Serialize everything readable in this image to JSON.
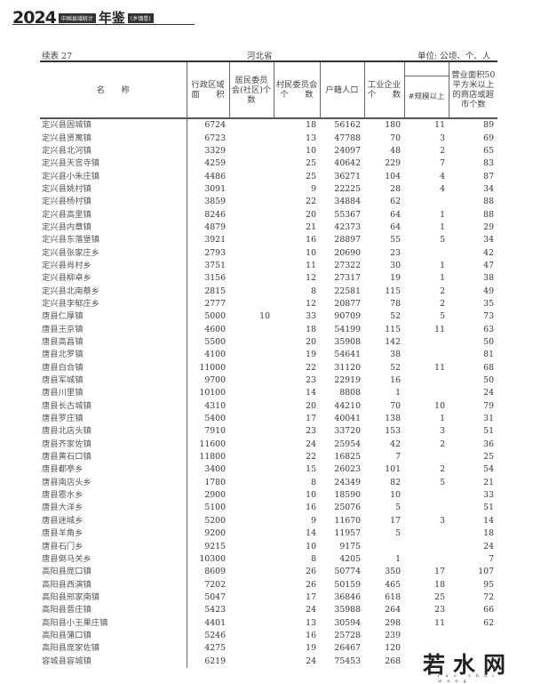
{
  "header": {
    "year": "2024",
    "series": "中国县域统计",
    "yearbook": "年鉴",
    "volume": "(乡镇卷)"
  },
  "caption": {
    "table_no": "续表 27",
    "province": "河北省",
    "unit": "单位: 公顷、个、人"
  },
  "columns": {
    "name": "名　　称",
    "area": "行政区域面　　积",
    "residents": "居民委员会(社区)个数",
    "villages": "村民委员会个　　数",
    "population": "户籍人口",
    "industry": "工业企业个　　数",
    "above_scale": "#规模以上",
    "shops": "营业面积50平方米以上的商店或超市个数"
  },
  "rows": [
    [
      "定兴县固城镇",
      "6724",
      "",
      "18",
      "56162",
      "180",
      "11",
      "89"
    ],
    [
      "定兴县贤寓镇",
      "6723",
      "",
      "13",
      "47788",
      "70",
      "3",
      "69"
    ],
    [
      "定兴县北河镇",
      "3329",
      "",
      "10",
      "24097",
      "48",
      "2",
      "65"
    ],
    [
      "定兴县天宫寺镇",
      "4259",
      "",
      "25",
      "40642",
      "229",
      "7",
      "83"
    ],
    [
      "定兴县小朱庄镇",
      "4486",
      "",
      "25",
      "36271",
      "104",
      "4",
      "87"
    ],
    [
      "定兴县姚村镇",
      "3091",
      "",
      "9",
      "22225",
      "28",
      "4",
      "34"
    ],
    [
      "定兴县杨村镇",
      "3859",
      "",
      "22",
      "34884",
      "62",
      "",
      "88"
    ],
    [
      "定兴县高里镇",
      "8246",
      "",
      "20",
      "55367",
      "64",
      "1",
      "88"
    ],
    [
      "定兴县内章镇",
      "4879",
      "",
      "21",
      "42373",
      "64",
      "1",
      "29"
    ],
    [
      "定兴县东落堡镇",
      "3921",
      "",
      "16",
      "28897",
      "55",
      "5",
      "34"
    ],
    [
      "定兴县张家庄乡",
      "2793",
      "",
      "10",
      "20690",
      "23",
      "",
      "42"
    ],
    [
      "定兴县肖村乡",
      "3751",
      "",
      "11",
      "27322",
      "30",
      "1",
      "47"
    ],
    [
      "定兴县柳卓乡",
      "3156",
      "",
      "12",
      "27317",
      "19",
      "1",
      "38"
    ],
    [
      "定兴县北南蔡乡",
      "2815",
      "",
      "8",
      "22581",
      "115",
      "2",
      "49"
    ],
    [
      "定兴县李郁庄乡",
      "2777",
      "",
      "12",
      "20877",
      "78",
      "2",
      "35"
    ],
    [
      "唐县仁厚镇",
      "5000",
      "10",
      "33",
      "90709",
      "52",
      "5",
      "73"
    ],
    [
      "唐县王京镇",
      "4600",
      "",
      "18",
      "54199",
      "115",
      "11",
      "63"
    ],
    [
      "唐县高昌镇",
      "5500",
      "",
      "20",
      "35908",
      "142",
      "",
      "50"
    ],
    [
      "唐县北罗镇",
      "4100",
      "",
      "19",
      "54641",
      "38",
      "",
      "81"
    ],
    [
      "唐县白合镇",
      "11000",
      "",
      "22",
      "31120",
      "52",
      "11",
      "68"
    ],
    [
      "唐县军城镇",
      "9700",
      "",
      "23",
      "22919",
      "16",
      "",
      "50"
    ],
    [
      "唐县川里镇",
      "10100",
      "",
      "14",
      "8808",
      "1",
      "",
      "24"
    ],
    [
      "唐县长古城镇",
      "4310",
      "",
      "20",
      "44210",
      "70",
      "10",
      "79"
    ],
    [
      "唐县罗庄镇",
      "5400",
      "",
      "17",
      "40041",
      "138",
      "1",
      "31"
    ],
    [
      "唐县北店头镇",
      "7910",
      "",
      "23",
      "33720",
      "153",
      "3",
      "51"
    ],
    [
      "唐县齐家佐镇",
      "11600",
      "",
      "24",
      "25954",
      "42",
      "2",
      "36"
    ],
    [
      "唐县黄石口镇",
      "11800",
      "",
      "22",
      "16825",
      "7",
      "",
      "25"
    ],
    [
      "唐县都亭乡",
      "3400",
      "",
      "15",
      "26023",
      "101",
      "2",
      "54"
    ],
    [
      "唐县南店头乡",
      "1780",
      "",
      "8",
      "24349",
      "82",
      "5",
      "21"
    ],
    [
      "唐县雹水乡",
      "2900",
      "",
      "10",
      "18590",
      "10",
      "",
      "33"
    ],
    [
      "唐县大洋乡",
      "5100",
      "",
      "16",
      "25076",
      "5",
      "",
      "51"
    ],
    [
      "唐县迷城乡",
      "5200",
      "",
      "9",
      "11670",
      "17",
      "3",
      "14"
    ],
    [
      "唐县羊角乡",
      "9200",
      "",
      "14",
      "11957",
      "5",
      "",
      "18"
    ],
    [
      "唐县石门乡",
      "9215",
      "",
      "10",
      "9175",
      "",
      "",
      "24"
    ],
    [
      "唐县倒马关乡",
      "10300",
      "",
      "8",
      "4205",
      "1",
      "",
      "7"
    ],
    [
      "高阳县庞口镇",
      "8609",
      "",
      "26",
      "50774",
      "350",
      "17",
      "107"
    ],
    [
      "高阳县西演镇",
      "7202",
      "",
      "26",
      "50159",
      "465",
      "18",
      "95"
    ],
    [
      "高阳县邢家南镇",
      "5047",
      "",
      "17",
      "36846",
      "618",
      "25",
      "72"
    ],
    [
      "高阳县晋庄镇",
      "5423",
      "",
      "24",
      "35988",
      "264",
      "23",
      "66"
    ],
    [
      "高阳县小王果庄镇",
      "4401",
      "",
      "13",
      "30594",
      "298",
      "11",
      "62"
    ],
    [
      "高阳县蒲口镇",
      "5246",
      "",
      "16",
      "25728",
      "239",
      "",
      ""
    ],
    [
      "高阳县庞家佐镇",
      "4275",
      "",
      "19",
      "26467",
      "120",
      "",
      ""
    ],
    [
      "容城县容城镇",
      "6219",
      "",
      "24",
      "75453",
      "268",
      "",
      ""
    ]
  ],
  "watermark": {
    "text": "若水网",
    "sub": "ruo shui wang"
  }
}
